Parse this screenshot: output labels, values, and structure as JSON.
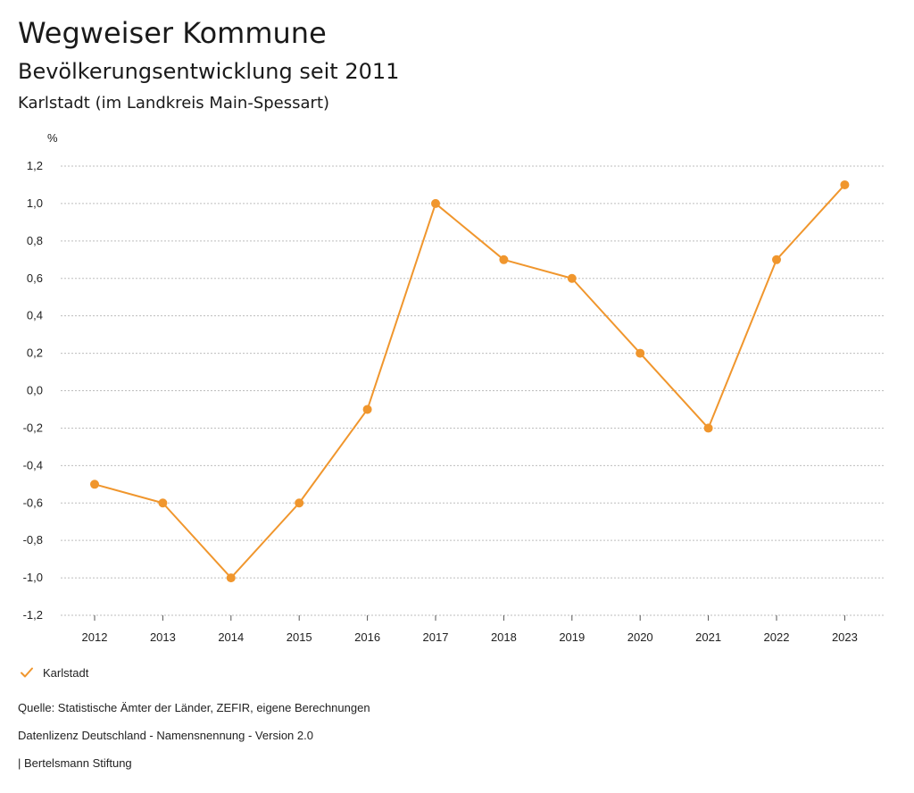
{
  "header": {
    "title": "Wegweiser Kommune",
    "subtitle": "Bevölkerungsentwicklung seit 2011",
    "region": "Karlstadt (im Landkreis Main-Spessart)"
  },
  "chart_data": {
    "type": "line",
    "title": "Bevölkerungsentwicklung seit 2011",
    "ylabel": "%",
    "xlabel": "",
    "ylim": [
      -1.2,
      1.2
    ],
    "yticks": [
      {
        "value": 1.2,
        "label": "1,2"
      },
      {
        "value": 1.0,
        "label": "1,0"
      },
      {
        "value": 0.8,
        "label": "0,8"
      },
      {
        "value": 0.6,
        "label": "0,6"
      },
      {
        "value": 0.4,
        "label": "0,4"
      },
      {
        "value": 0.2,
        "label": "0,2"
      },
      {
        "value": 0.0,
        "label": "0,0"
      },
      {
        "value": -0.2,
        "label": "-0,2"
      },
      {
        "value": -0.4,
        "label": "-0,4"
      },
      {
        "value": -0.6,
        "label": "-0,6"
      },
      {
        "value": -0.8,
        "label": "-0,8"
      },
      {
        "value": -1.0,
        "label": "-1,0"
      },
      {
        "value": -1.2,
        "label": "-1,2"
      }
    ],
    "categories": [
      "2012",
      "2013",
      "2014",
      "2015",
      "2016",
      "2017",
      "2018",
      "2019",
      "2020",
      "2021",
      "2022",
      "2023"
    ],
    "series": [
      {
        "name": "Karlstadt",
        "color": "#f0962d",
        "values": [
          -0.5,
          -0.6,
          -1.0,
          -0.6,
          -0.1,
          1.0,
          0.7,
          0.6,
          0.2,
          -0.2,
          0.7,
          1.1
        ]
      }
    ],
    "grid": true,
    "legend_position": "bottom-left"
  },
  "legend": {
    "label": "Karlstadt",
    "icon": "check-icon"
  },
  "footer": {
    "source": "Quelle: Statistische Ämter der Länder, ZEFIR, eigene Berechnungen",
    "license": "Datenlizenz Deutschland - Namensnennung - Version 2.0",
    "brand": "| Bertelsmann Stiftung"
  },
  "colors": {
    "accent": "#f0962d",
    "grid": "#bdbdbd",
    "text": "#222222"
  }
}
